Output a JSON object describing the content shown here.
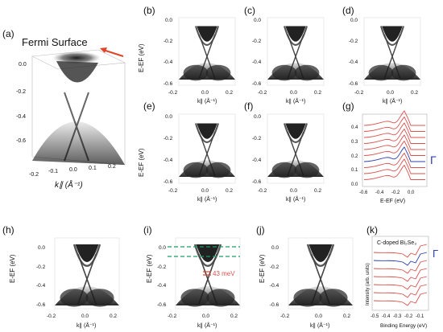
{
  "figure": {
    "panel_a": {
      "label": "(a)",
      "title": "Fermi Surface",
      "y_ticks": [
        "0.0",
        "-0.2",
        "-0.4",
        "-0.6"
      ],
      "x_ticks": [
        "-0.2",
        "-0.1",
        "0.0",
        "0.1",
        "0.2"
      ],
      "x_label": "k∥ (Å⁻¹)"
    },
    "grid_panels": [
      {
        "label": "(b)",
        "ylabel": "E-EF (eV)"
      },
      {
        "label": "(c)"
      },
      {
        "label": "(d)"
      },
      {
        "label": "(e)",
        "ylabel": "E-EF (eV)"
      },
      {
        "label": "(f)"
      }
    ],
    "grid_y_ticks": [
      "0.0",
      "-0.2",
      "-0.4",
      "-0.6"
    ],
    "grid_x_ticks": [
      "-0.2",
      "0.0",
      "0.2"
    ],
    "grid_x_label": "k∥ (Å⁻¹)",
    "panel_g": {
      "label": "(g)",
      "y_ticks": [
        "0.4",
        "0.3",
        "0.2",
        "0.1",
        "0.0"
      ],
      "x_ticks": [
        "-0.6",
        "-0.4",
        "-0.2",
        "0.0"
      ],
      "x_label": "E-EF (eV)",
      "gamma": "Γ"
    },
    "bottom_panels": [
      {
        "label": "(h)",
        "ylabel": "E-EF (eV)"
      },
      {
        "label": "(i)",
        "ylabel": "E-EF (eV)",
        "annotation": "43 meV"
      },
      {
        "label": "(j)",
        "ylabel": "E-EF (eV)"
      }
    ],
    "bottom_y_ticks": [
      "0.0",
      "-0.2",
      "-0.4",
      "-0.6"
    ],
    "bottom_x_ticks": [
      "-0.2",
      "0.0",
      "0.2"
    ],
    "bottom_x_label": "k∥ (Å⁻¹)",
    "panel_k": {
      "label": "(k)",
      "title": "C-doped Bi₂Se₃",
      "ylabel": "Intensity (arb. units)",
      "x_ticks": [
        "-0.5",
        "-0.4",
        "-0.3",
        "-0.2",
        "-0.1"
      ],
      "x_label": "Binding Energy (eV)",
      "gamma": "Γ"
    },
    "colors": {
      "curve_red": "#d9534f",
      "curve_blue": "#2c3fb0",
      "dash_green": "#1a9a6a",
      "arrow_red": "#e0452a"
    }
  }
}
